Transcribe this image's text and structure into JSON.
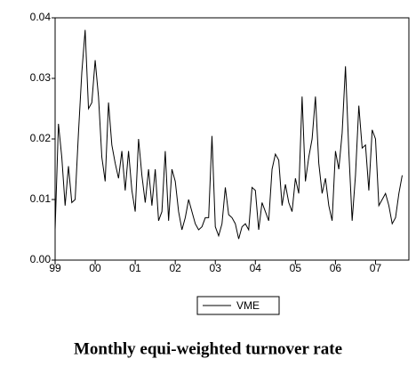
{
  "chart_data": {
    "type": "line",
    "title": "Monthly equi-weighted turnover rate",
    "categories": [
      "99",
      null,
      null,
      null,
      null,
      null,
      null,
      null,
      null,
      null,
      null,
      null,
      "00",
      null,
      null,
      null,
      null,
      null,
      null,
      null,
      null,
      null,
      null,
      null,
      "01",
      null,
      null,
      null,
      null,
      null,
      null,
      null,
      null,
      null,
      null,
      null,
      "02",
      null,
      null,
      null,
      null,
      null,
      null,
      null,
      null,
      null,
      null,
      null,
      "03",
      null,
      null,
      null,
      null,
      null,
      null,
      null,
      null,
      null,
      null,
      null,
      "04",
      null,
      null,
      null,
      null,
      null,
      null,
      null,
      null,
      null,
      null,
      null,
      "05",
      null,
      null,
      null,
      null,
      null,
      null,
      null,
      null,
      null,
      null,
      null,
      "06",
      null,
      null,
      null,
      null,
      null,
      null,
      null,
      null,
      null,
      null,
      null,
      "07",
      null,
      null,
      null,
      null,
      null,
      null,
      null,
      null
    ],
    "series": [
      {
        "name": "VME",
        "color": "#000000",
        "values": [
          0.005,
          0.0225,
          0.017,
          0.009,
          0.0155,
          0.0095,
          0.01,
          0.021,
          0.031,
          0.038,
          0.025,
          0.026,
          0.033,
          0.027,
          0.017,
          0.013,
          0.026,
          0.019,
          0.016,
          0.0135,
          0.018,
          0.0115,
          0.018,
          0.0115,
          0.008,
          0.02,
          0.014,
          0.0095,
          0.015,
          0.009,
          0.015,
          0.0065,
          0.008,
          0.018,
          0.0065,
          0.015,
          0.013,
          0.008,
          0.005,
          0.007,
          0.01,
          0.008,
          0.006,
          0.005,
          0.0055,
          0.007,
          0.007,
          0.0205,
          0.0055,
          0.004,
          0.006,
          0.012,
          0.0075,
          0.007,
          0.006,
          0.0035,
          0.0055,
          0.006,
          0.005,
          0.012,
          0.0115,
          0.005,
          0.0095,
          0.008,
          0.0065,
          0.015,
          0.0175,
          0.0165,
          0.009,
          0.0125,
          0.0095,
          0.008,
          0.0135,
          0.011,
          0.027,
          0.013,
          0.017,
          0.02,
          0.027,
          0.016,
          0.011,
          0.0135,
          0.009,
          0.0065,
          0.018,
          0.015,
          0.021,
          0.032,
          0.018,
          0.0065,
          0.014,
          0.0255,
          0.0185,
          0.019,
          0.0115,
          0.0215,
          0.02,
          0.009,
          0.01,
          0.011,
          0.009,
          0.006,
          0.007,
          0.011,
          0.014
        ]
      }
    ],
    "ylim": [
      0,
      0.04
    ],
    "yticks": [
      {
        "value": 0,
        "label": "0.00"
      },
      {
        "value": 0.01,
        "label": "0.01"
      },
      {
        "value": 0.02,
        "label": "0.02"
      },
      {
        "value": 0.03,
        "label": "0.03"
      },
      {
        "value": 0.04,
        "label": "0.04"
      }
    ],
    "legend": "bottom"
  }
}
